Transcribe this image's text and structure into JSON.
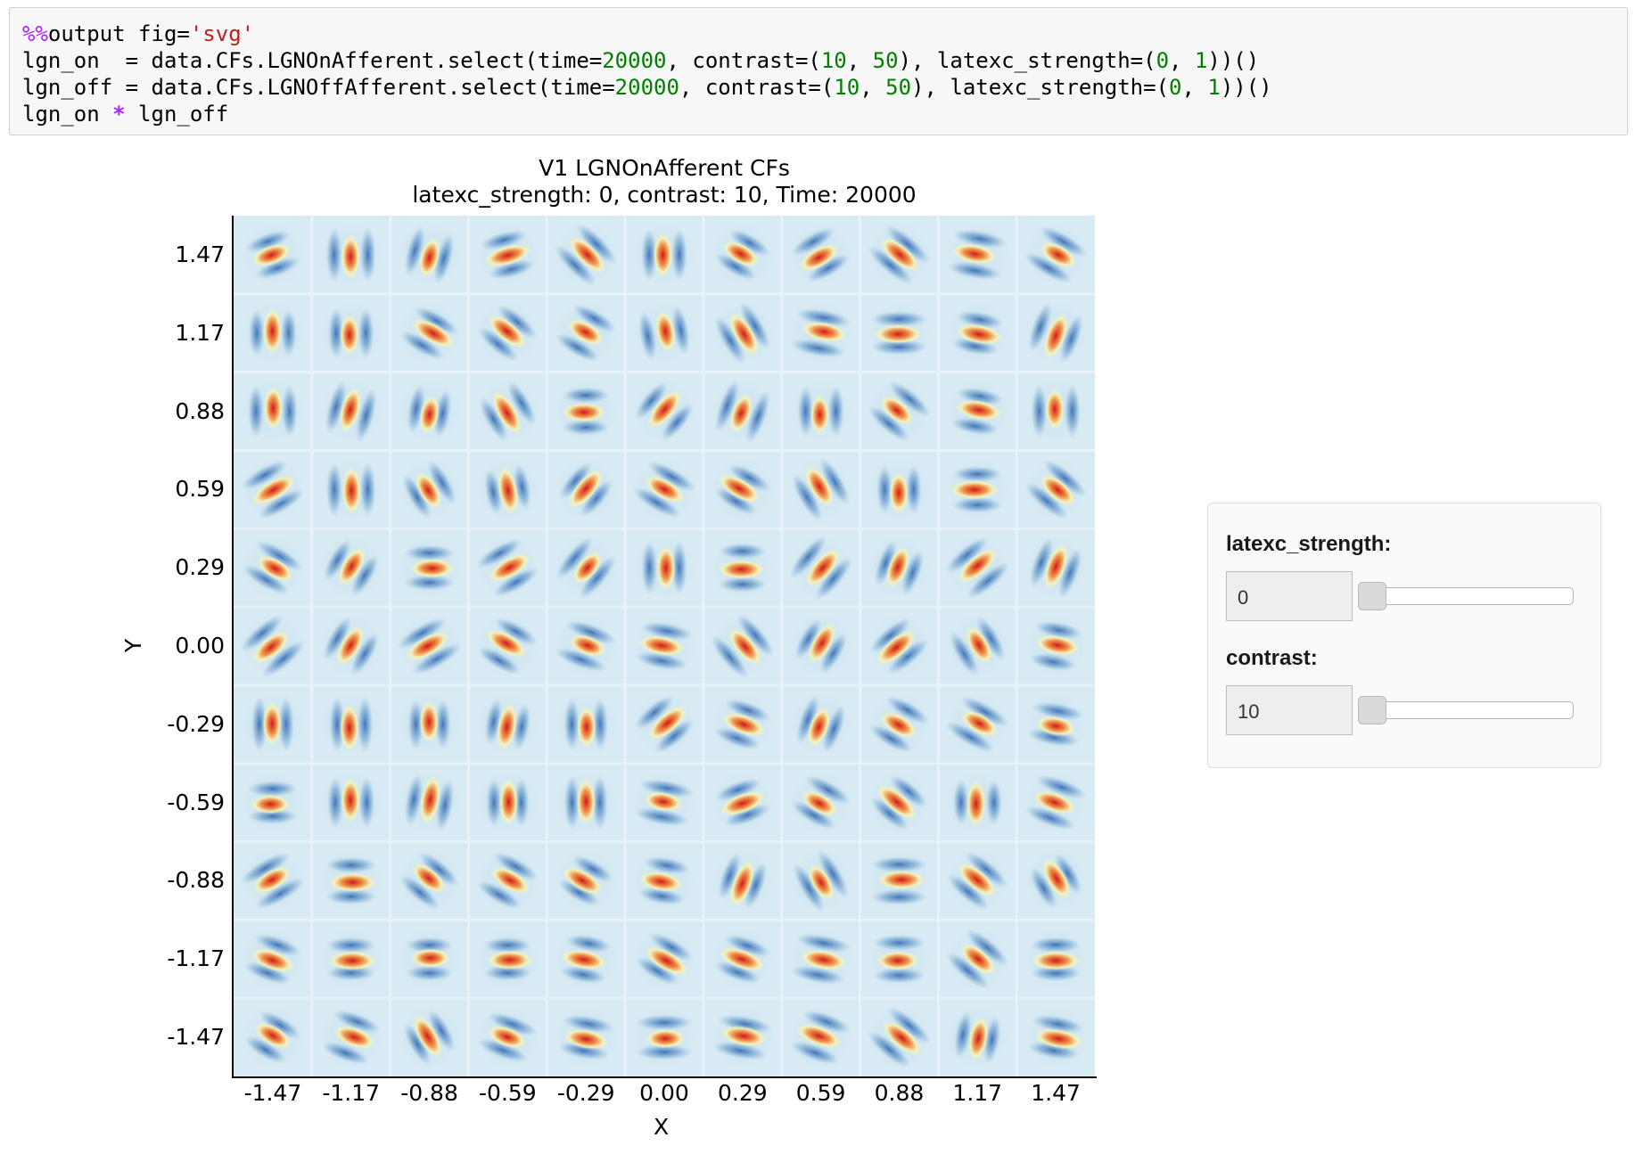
{
  "code": {
    "lines": [
      [
        {
          "t": "%%",
          "c": "magic"
        },
        {
          "t": "output fig=",
          "c": ""
        },
        {
          "t": "'svg'",
          "c": "str"
        }
      ],
      [
        {
          "t": "lgn_on  = data.CFs.LGNOnAfferent.select(time=",
          "c": ""
        },
        {
          "t": "20000",
          "c": "num"
        },
        {
          "t": ", contrast=(",
          "c": ""
        },
        {
          "t": "10",
          "c": "num"
        },
        {
          "t": ", ",
          "c": ""
        },
        {
          "t": "50",
          "c": "num"
        },
        {
          "t": "), latexc_strength=(",
          "c": ""
        },
        {
          "t": "0",
          "c": "num"
        },
        {
          "t": ", ",
          "c": ""
        },
        {
          "t": "1",
          "c": "num"
        },
        {
          "t": "))()",
          "c": ""
        }
      ],
      [
        {
          "t": "lgn_off = data.CFs.LGNOffAfferent.select(time=",
          "c": ""
        },
        {
          "t": "20000",
          "c": "num"
        },
        {
          "t": ", contrast=(",
          "c": ""
        },
        {
          "t": "10",
          "c": "num"
        },
        {
          "t": ", ",
          "c": ""
        },
        {
          "t": "50",
          "c": "num"
        },
        {
          "t": "), latexc_strength=(",
          "c": ""
        },
        {
          "t": "0",
          "c": "num"
        },
        {
          "t": ", ",
          "c": ""
        },
        {
          "t": "1",
          "c": "num"
        },
        {
          "t": "))()",
          "c": ""
        }
      ],
      [
        {
          "t": "lgn_on ",
          "c": ""
        },
        {
          "t": "*",
          "c": "op"
        },
        {
          "t": " lgn_off",
          "c": ""
        }
      ]
    ],
    "colors": {
      "magic": "#aa22ff",
      "str": "#ba2121",
      "num": "#008000",
      "op": "#aa22ff"
    }
  },
  "figure": {
    "title": "V1 LGNOnAfferent CFs",
    "subtitle": "latexc_strength: 0, contrast: 10, Time: 20000",
    "xlabel": "X",
    "ylabel": "Y",
    "xticks": [
      "-1.47",
      "-1.17",
      "-0.88",
      "-0.59",
      "-0.29",
      "0.00",
      "0.29",
      "0.59",
      "0.88",
      "1.17",
      "1.47"
    ],
    "yticks": [
      "1.47",
      "1.17",
      "0.88",
      "0.59",
      "0.29",
      "0.00",
      "-0.29",
      "-0.59",
      "-0.88",
      "-1.17",
      "-1.47"
    ],
    "colormap": {
      "low": "#3b6fb5",
      "mid": "#f5f2b8",
      "high": "#d0191e",
      "background": "#d8eaf4"
    }
  },
  "chart_data": {
    "type": "heatmap",
    "title": "V1 LGNOnAfferent CFs",
    "subtitle": "latexc_strength: 0, contrast: 10, Time: 20000",
    "xlabel": "X",
    "ylabel": "Y",
    "x": [
      -1.47,
      -1.17,
      -0.88,
      -0.59,
      -0.29,
      0.0,
      0.29,
      0.59,
      0.88,
      1.17,
      1.47
    ],
    "y": [
      1.47,
      1.17,
      0.88,
      0.59,
      0.29,
      0.0,
      -0.29,
      -0.59,
      -0.88,
      -1.17,
      -1.47
    ],
    "orientations_deg": [
      [
        20,
        90,
        75,
        15,
        135,
        90,
        150,
        30,
        140,
        170,
        150
      ],
      [
        90,
        90,
        150,
        140,
        150,
        100,
        120,
        170,
        180,
        170,
        70
      ],
      [
        90,
        75,
        80,
        120,
        0,
        50,
        70,
        90,
        140,
        170,
        90
      ],
      [
        30,
        90,
        120,
        100,
        50,
        150,
        150,
        120,
        90,
        0,
        140
      ],
      [
        150,
        60,
        0,
        30,
        50,
        90,
        0,
        50,
        70,
        40,
        70
      ],
      [
        40,
        60,
        30,
        150,
        160,
        170,
        130,
        60,
        40,
        120,
        170
      ],
      [
        90,
        90,
        90,
        80,
        90,
        40,
        160,
        70,
        150,
        150,
        170
      ],
      [
        0,
        90,
        80,
        90,
        90,
        170,
        20,
        150,
        140,
        90,
        160
      ],
      [
        30,
        0,
        140,
        150,
        150,
        170,
        70,
        120,
        0,
        140,
        120
      ],
      [
        160,
        0,
        0,
        0,
        170,
        150,
        160,
        170,
        0,
        140,
        180
      ],
      [
        150,
        160,
        120,
        160,
        170,
        180,
        170,
        160,
        140,
        80,
        170
      ]
    ],
    "colormap": "RdYlBu_r"
  },
  "widgets": {
    "latexc": {
      "label": "latexc_strength:",
      "value": "0",
      "position": 0
    },
    "contrast": {
      "label": "contrast:",
      "value": "10",
      "position": 0
    }
  }
}
